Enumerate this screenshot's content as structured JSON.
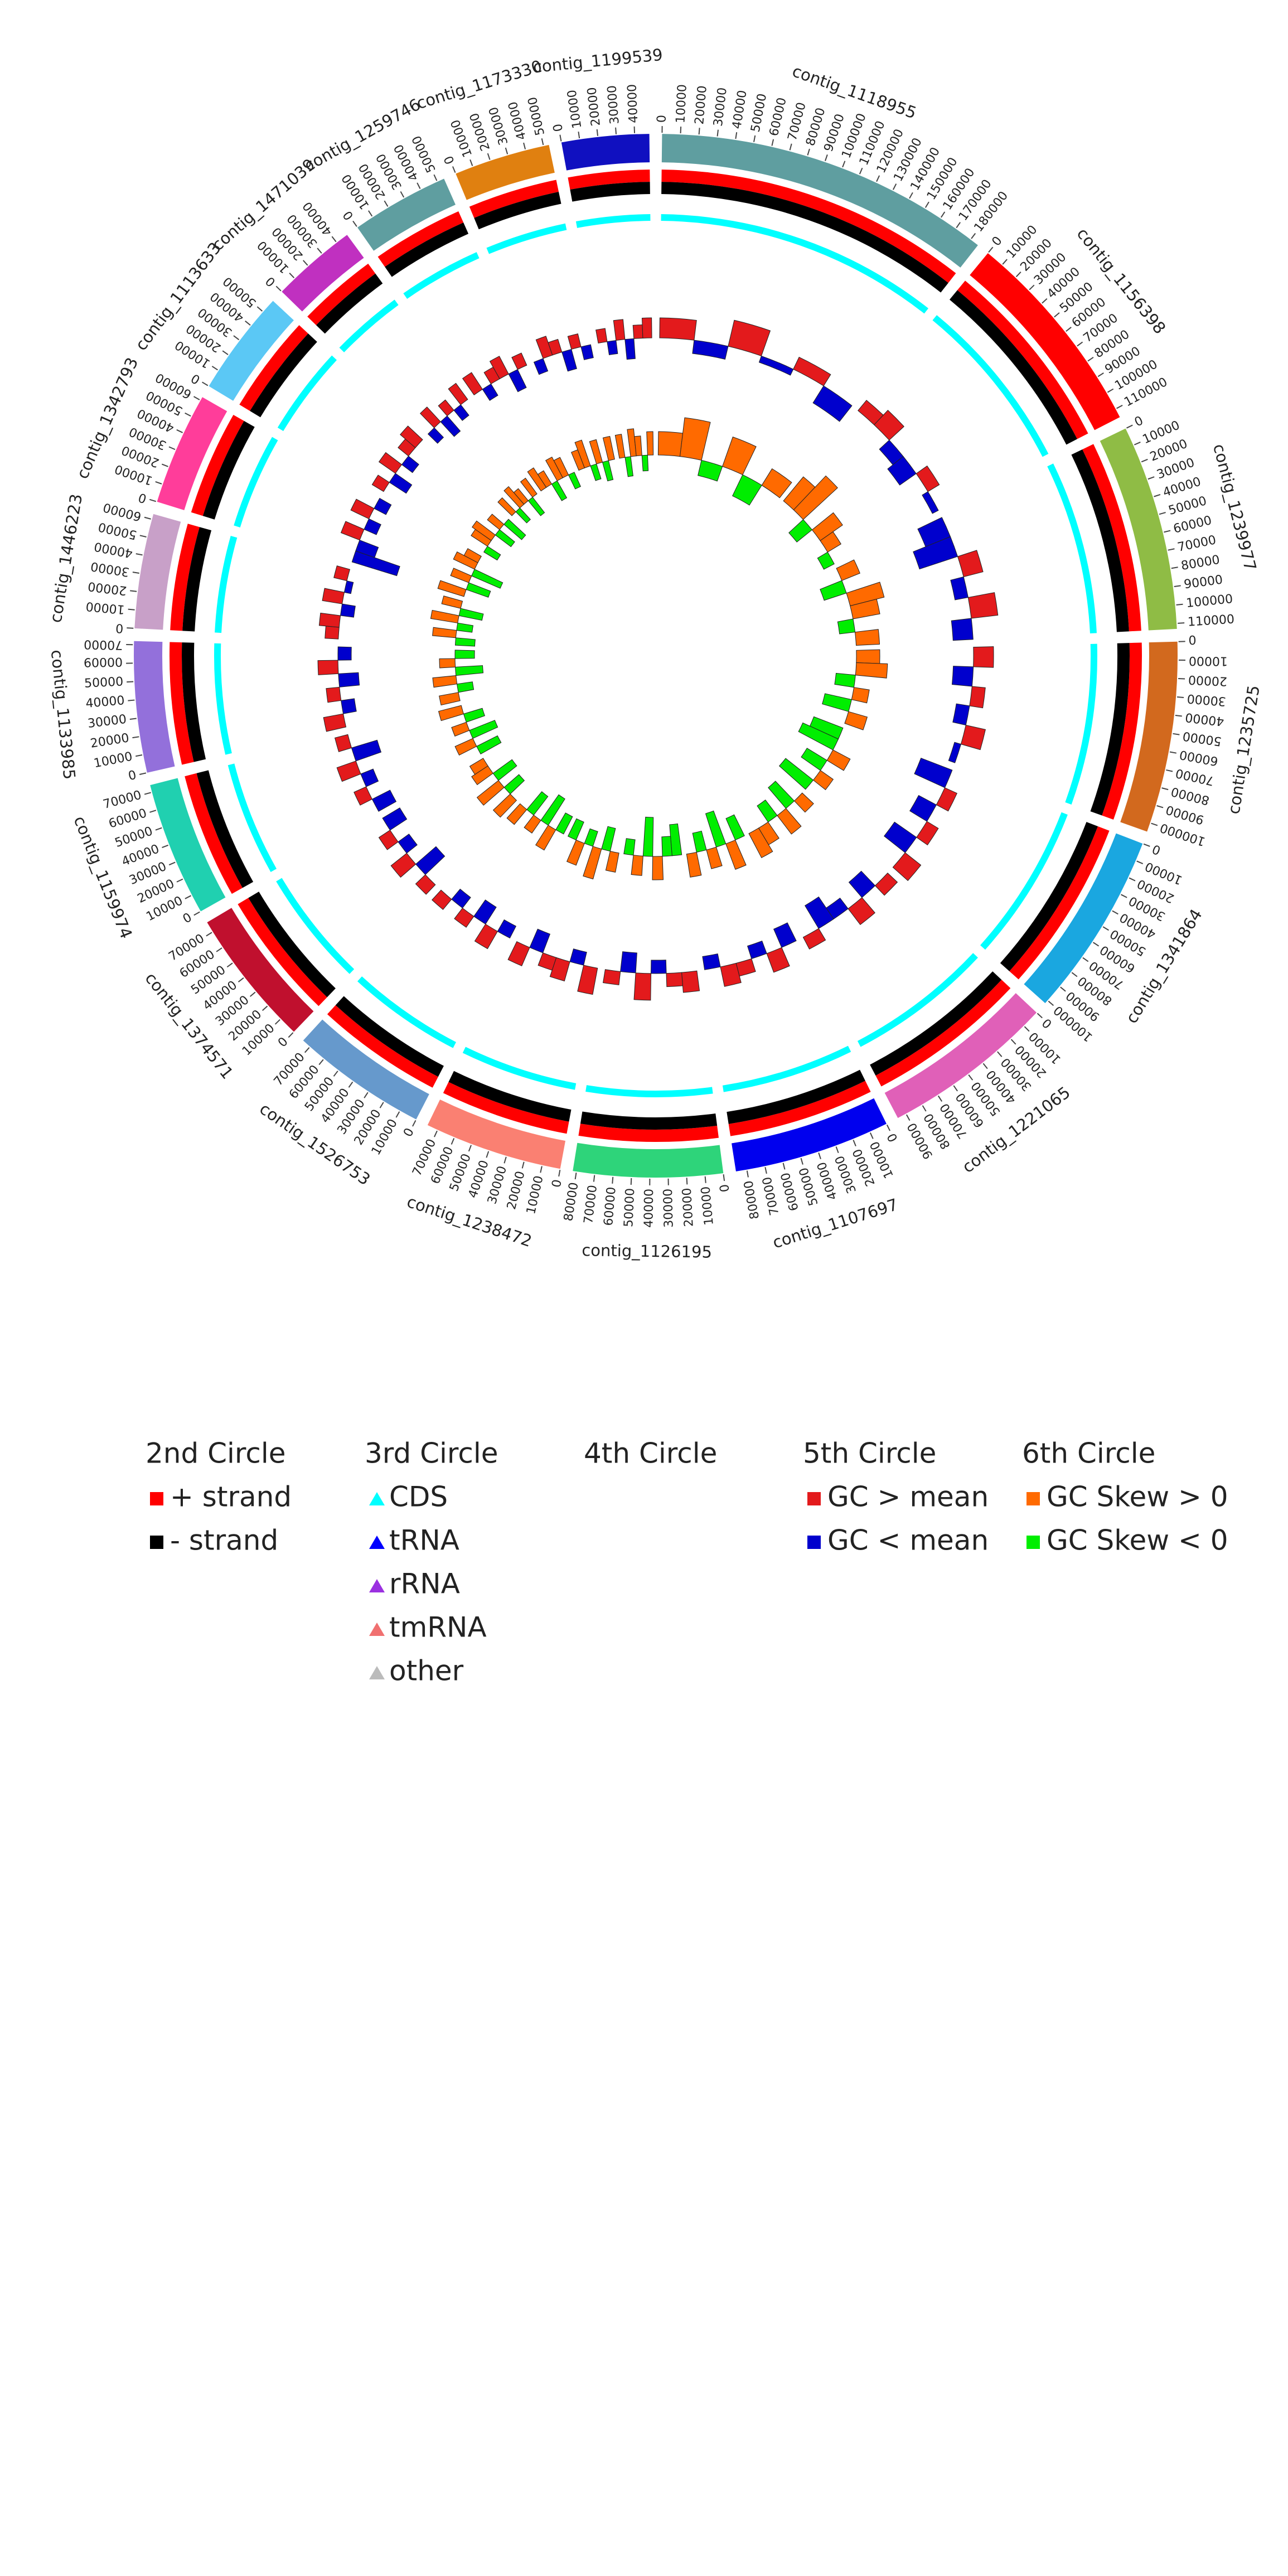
{
  "chart_data": {
    "type": "circos",
    "contigs": [
      {
        "name": "contig_1118955",
        "color": "#5f9ea0",
        "length": 185000,
        "ticks": [
          0,
          10000,
          20000,
          30000,
          40000,
          50000,
          60000,
          70000,
          80000,
          90000,
          100000,
          110000,
          120000,
          130000,
          140000,
          150000,
          160000,
          170000,
          180000
        ],
        "gc": [
          0.03,
          -0.02,
          0.04,
          -0.01,
          0.02,
          -0.03
        ],
        "gc_skew": [
          0.06,
          0.1,
          -0.04,
          0.08,
          -0.06,
          0.05
        ]
      },
      {
        "name": "contig_1156398",
        "color": "#ff0000",
        "length": 115000,
        "ticks": [
          0,
          10000,
          20000,
          30000,
          40000,
          50000,
          60000,
          70000,
          80000,
          90000,
          100000,
          110000
        ],
        "gc": [
          0.02,
          0.03,
          -0.02,
          -0.03,
          0.02,
          -0.01
        ],
        "gc_skew": [
          0.08,
          0.12,
          -0.05,
          0.07,
          0.04,
          -0.03
        ]
      },
      {
        "name": "contig_1239977",
        "color": "#8fbc45",
        "length": 113000,
        "ticks": [
          0,
          10000,
          20000,
          30000,
          40000,
          50000,
          60000,
          70000,
          80000,
          90000,
          100000,
          110000
        ],
        "gc": [
          -0.04,
          -0.06,
          0.03,
          -0.02,
          0.04,
          -0.03
        ],
        "gc_skew": [
          0.05,
          -0.06,
          0.09,
          0.07,
          -0.04,
          0.06
        ]
      },
      {
        "name": "contig_1235725",
        "color": "#d2691e",
        "length": 105000,
        "ticks": [
          0,
          10000,
          20000,
          30000,
          40000,
          50000,
          60000,
          70000,
          80000,
          90000,
          100000
        ],
        "gc": [
          0.03,
          -0.03,
          0.02,
          -0.02,
          0.03,
          -0.01
        ],
        "gc_skew": [
          0.06,
          0.08,
          -0.05,
          0.04,
          -0.07,
          0.05
        ]
      },
      {
        "name": "contig_1341864",
        "color": "#1aa7e0",
        "length": 102000,
        "ticks": [
          0,
          10000,
          20000,
          30000,
          40000,
          50000,
          60000,
          70000,
          80000,
          90000,
          100000
        ],
        "gc": [
          -0.05,
          0.02,
          -0.03,
          0.02,
          -0.04,
          0.03
        ],
        "gc_skew": [
          -0.08,
          -0.1,
          0.05,
          -0.06,
          0.04,
          -0.09
        ]
      },
      {
        "name": "contig_1221065",
        "color": "#e060b8",
        "length": 95000,
        "ticks": [
          0,
          10000,
          20000,
          30000,
          40000,
          50000,
          60000,
          70000,
          80000,
          90000
        ],
        "gc": [
          0.02,
          -0.03,
          0.03,
          -0.02,
          -0.04,
          0.02
        ],
        "gc_skew": [
          0.04,
          -0.07,
          0.06,
          -0.05,
          0.05,
          0.07
        ]
      },
      {
        "name": "contig_1107697",
        "color": "#0000ee",
        "length": 86000,
        "ticks": [
          0,
          10000,
          20000,
          30000,
          40000,
          50000,
          60000,
          70000,
          80000
        ],
        "gc": [
          -0.03,
          0.03,
          -0.02,
          0.02,
          0.03,
          -0.02
        ],
        "gc_skew": [
          -0.06,
          0.07,
          -0.09,
          0.05,
          -0.05,
          0.06
        ]
      },
      {
        "name": "contig_1126195",
        "color": "#2ed47a",
        "length": 82000,
        "ticks": [
          0,
          10000,
          20000,
          30000,
          40000,
          50000,
          60000,
          70000,
          80000
        ],
        "gc": [
          0.03,
          0.02,
          -0.02,
          0.04,
          -0.03,
          0.02
        ],
        "gc_skew": [
          -0.08,
          -0.05,
          0.06,
          -0.1,
          0.05,
          -0.04
        ]
      },
      {
        "name": "contig_1238472",
        "color": "#fa8072",
        "length": 76000,
        "ticks": [
          0,
          10000,
          20000,
          30000,
          40000,
          50000,
          60000,
          70000
        ],
        "gc": [
          0.04,
          -0.02,
          0.03,
          0.02,
          -0.03,
          0.03
        ],
        "gc_skew": [
          0.05,
          -0.06,
          0.08,
          -0.04,
          0.06,
          -0.05
        ]
      },
      {
        "name": "contig_1526753",
        "color": "#6699cc",
        "length": 75000,
        "ticks": [
          0,
          10000,
          20000,
          30000,
          40000,
          50000,
          60000,
          70000
        ],
        "gc": [
          -0.02,
          0.03,
          -0.03,
          0.02,
          -0.02,
          0.02
        ],
        "gc_skew": [
          -0.05,
          0.06,
          -0.08,
          0.04,
          -0.06,
          0.05
        ]
      },
      {
        "name": "contig_1374571",
        "color": "#c0102e",
        "length": 76000,
        "ticks": [
          0,
          10000,
          20000,
          30000,
          40000,
          50000,
          60000,
          70000
        ],
        "gc": [
          0.02,
          -0.04,
          0.03,
          -0.02,
          0.02,
          -0.03
        ],
        "gc_skew": [
          0.06,
          -0.05,
          0.07,
          -0.06,
          0.05,
          0.04
        ]
      },
      {
        "name": "contig_1159974",
        "color": "#20d0b0",
        "length": 74000,
        "ticks": [
          0,
          10000,
          20000,
          30000,
          40000,
          50000,
          60000,
          70000
        ],
        "gc": [
          -0.03,
          0.02,
          -0.02,
          0.03,
          -0.04,
          0.02
        ],
        "gc_skew": [
          -0.06,
          0.05,
          -0.07,
          0.04,
          -0.05,
          0.06
        ]
      },
      {
        "name": "contig_1133985",
        "color": "#9370db",
        "length": 72000,
        "ticks": [
          0,
          10000,
          20000,
          30000,
          40000,
          50000,
          60000,
          70000
        ],
        "gc": [
          0.03,
          -0.02,
          0.02,
          -0.03,
          0.03,
          -0.02
        ],
        "gc_skew": [
          0.05,
          -0.04,
          0.06,
          -0.07,
          0.04,
          -0.05
        ]
      },
      {
        "name": "contig_1446223",
        "color": "#c8a0c8",
        "length": 63000,
        "ticks": [
          0,
          10000,
          20000,
          30000,
          40000,
          50000,
          60000
        ],
        "gc": [
          0.02,
          0.03,
          -0.02,
          0.03,
          -0.01,
          0.02
        ],
        "gc_skew": [
          -0.05,
          0.06,
          -0.04,
          0.07,
          -0.06,
          0.05
        ]
      },
      {
        "name": "contig_1342793",
        "color": "#ff3d9a",
        "length": 62000,
        "ticks": [
          0,
          10000,
          20000,
          30000,
          40000,
          50000,
          60000
        ],
        "gc": [
          -0.07,
          -0.03,
          0.03,
          -0.02,
          0.03,
          -0.02
        ],
        "gc_skew": [
          0.07,
          -0.06,
          0.05,
          -0.08,
          0.06,
          0.04
        ]
      },
      {
        "name": "contig_1113633",
        "color": "#5bc8f5",
        "length": 58000,
        "ticks": [
          0,
          10000,
          20000,
          30000,
          40000,
          50000
        ],
        "gc": [
          0.02,
          -0.03,
          0.03,
          -0.02,
          0.02,
          0.03
        ],
        "gc_skew": [
          -0.04,
          0.05,
          0.06,
          -0.05,
          0.04,
          -0.06
        ]
      },
      {
        "name": "contig_1471039",
        "color": "#c030c0",
        "length": 47000,
        "ticks": [
          0,
          10000,
          20000,
          30000,
          40000
        ],
        "gc": [
          -0.02,
          0.03,
          -0.03,
          0.02,
          -0.02,
          0.03
        ],
        "gc_skew": [
          0.05,
          -0.04,
          0.06,
          0.04,
          -0.05,
          0.05
        ]
      },
      {
        "name": "contig_1259746",
        "color": "#5f9ea0",
        "length": 54000,
        "ticks": [
          0,
          10000,
          20000,
          30000,
          40000,
          50000
        ],
        "gc": [
          0.03,
          -0.02,
          0.02,
          0.03,
          -0.03,
          0.02
        ],
        "gc_skew": [
          0.06,
          0.04,
          -0.05,
          0.06,
          0.05,
          -0.04
        ]
      },
      {
        "name": "contig_1173330",
        "color": "#e08010",
        "length": 53000,
        "ticks": [
          0,
          10000,
          20000,
          30000,
          40000,
          50000
        ],
        "gc": [
          -0.02,
          0.03,
          0.02,
          -0.03,
          0.02,
          -0.02
        ],
        "gc_skew": [
          0.05,
          0.07,
          -0.04,
          0.06,
          -0.05,
          0.06
        ]
      },
      {
        "name": "contig_1199539",
        "color": "#1010c0",
        "length": 48000,
        "ticks": [
          0,
          10000,
          20000,
          30000,
          40000
        ],
        "gc": [
          0.02,
          -0.02,
          0.03,
          -0.03,
          0.02,
          0.03
        ],
        "gc_skew": [
          0.06,
          -0.05,
          0.07,
          0.05,
          -0.04,
          0.06
        ]
      }
    ],
    "legend": [
      {
        "title": "2nd Circle",
        "items": [
          {
            "label": "+ strand",
            "color": "#ff0000",
            "shape": "square"
          },
          {
            "label": "- strand",
            "color": "#000000",
            "shape": "square"
          }
        ]
      },
      {
        "title": "3rd Circle",
        "items": [
          {
            "label": "CDS",
            "color": "#00ffff",
            "shape": "triangle"
          },
          {
            "label": "tRNA",
            "color": "#0000ff",
            "shape": "triangle"
          },
          {
            "label": "rRNA",
            "color": "#9b30e0",
            "shape": "triangle"
          },
          {
            "label": "tmRNA",
            "color": "#f07070",
            "shape": "triangle"
          },
          {
            "label": "other",
            "color": "#bbbbbb",
            "shape": "triangle"
          }
        ]
      },
      {
        "title": "4th Circle",
        "items": []
      },
      {
        "title": "5th Circle",
        "items": [
          {
            "label": "GC > mean",
            "color": "#e31a1c",
            "shape": "square"
          },
          {
            "label": "GC < mean",
            "color": "#0000cd",
            "shape": "square"
          }
        ]
      },
      {
        "title": "6th Circle",
        "items": [
          {
            "label": "GC Skew > 0",
            "color": "#ff6a00",
            "shape": "square"
          },
          {
            "label": "GC Skew < 0",
            "color": "#00ee00",
            "shape": "square"
          }
        ]
      }
    ]
  }
}
